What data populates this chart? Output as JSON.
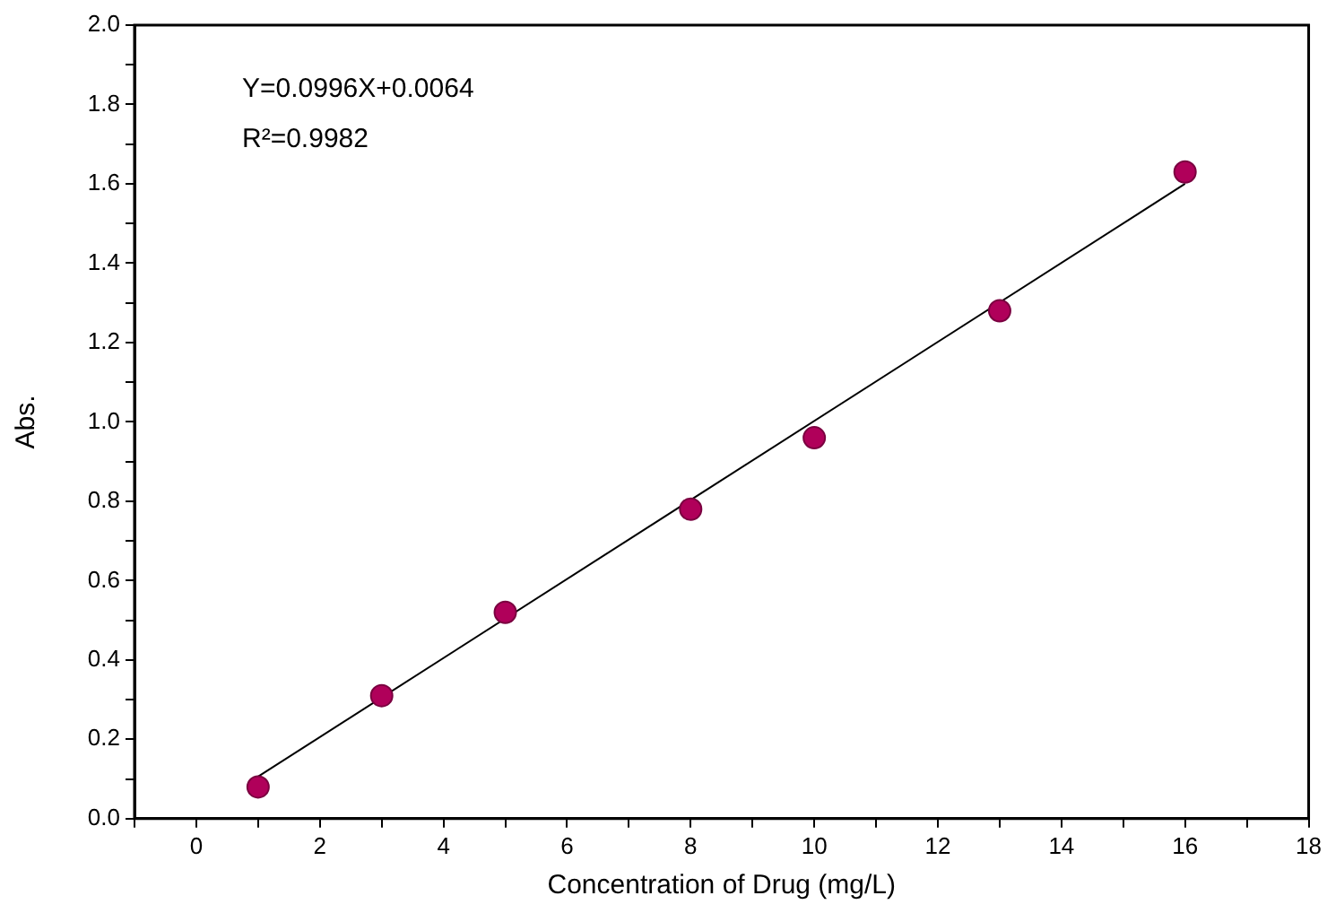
{
  "chart_data": {
    "type": "scatter",
    "xlabel": "Concentration of Drug (mg/L)",
    "ylabel": "Abs.",
    "annotations": [
      "Y=0.0996X+0.0064",
      "R²=0.9982"
    ],
    "grid": false,
    "legend": false,
    "xlim": [
      -1,
      18
    ],
    "xticks": [
      {
        "value": -1,
        "label": null
      },
      0,
      {
        "value": 1,
        "label": null
      },
      2,
      {
        "value": 3,
        "label": null
      },
      4,
      {
        "value": 5,
        "label": null
      },
      6,
      {
        "value": 7,
        "label": null
      },
      8,
      {
        "value": 9,
        "label": null
      },
      10,
      {
        "value": 11,
        "label": null
      },
      12,
      {
        "value": 13,
        "label": null
      },
      14,
      {
        "value": 15,
        "label": null
      },
      16,
      {
        "value": 17,
        "label": null
      },
      18
    ],
    "ylim": [
      0,
      2
    ],
    "yticks": [
      {
        "value": 0,
        "label": "0.0"
      },
      {
        "value": 0.1,
        "label": null
      },
      {
        "value": 0.2,
        "label": "0.2"
      },
      {
        "value": 0.3,
        "label": null
      },
      {
        "value": 0.4,
        "label": "0.4"
      },
      {
        "value": 0.5,
        "label": null
      },
      {
        "value": 0.6,
        "label": "0.6"
      },
      {
        "value": 0.7,
        "label": null
      },
      {
        "value": 0.8,
        "label": "0.8"
      },
      {
        "value": 0.9,
        "label": null
      },
      {
        "value": 1,
        "label": "1.0"
      },
      {
        "value": 1.1,
        "label": null
      },
      {
        "value": 1.2,
        "label": "1.2"
      },
      {
        "value": 1.3,
        "label": null
      },
      {
        "value": 1.4,
        "label": "1.4"
      },
      {
        "value": 1.5,
        "label": null
      },
      {
        "value": 1.6,
        "label": "1.6"
      },
      {
        "value": 1.7,
        "label": null
      },
      {
        "value": 1.8,
        "label": "1.8"
      },
      {
        "value": 1.9,
        "label": null
      },
      {
        "value": 2,
        "label": "2.0"
      }
    ],
    "series": [
      {
        "type": "scatter",
        "color": "#b0005a",
        "marker": "circle",
        "x": [
          1,
          3,
          5,
          8,
          10,
          13,
          16
        ],
        "values": [
          0.08,
          0.31,
          0.52,
          0.78,
          0.96,
          1.28,
          1.63
        ]
      },
      {
        "type": "line",
        "color": "#000000",
        "marker": "none",
        "line_style": "solid",
        "x": [
          1,
          16
        ],
        "values": [
          0.106,
          1.6
        ]
      }
    ]
  }
}
